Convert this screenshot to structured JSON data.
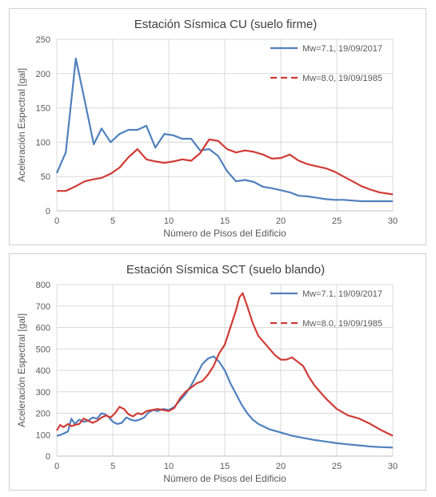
{
  "chart_data": [
    {
      "type": "line",
      "title": "Estación Sísmica CU (suelo firme)",
      "xlabel": "Número de Pisos del Edificio",
      "ylabel": "Aceleración Espectral [gal]",
      "xlim": [
        0,
        30
      ],
      "ylim": [
        0,
        250
      ],
      "xticks": [
        "0",
        "5",
        "10",
        "15",
        "20",
        "25",
        "30"
      ],
      "yticks": [
        "0",
        "50",
        "100",
        "150",
        "200",
        "250"
      ],
      "grid": true,
      "legend_position": "top-right",
      "series": [
        {
          "name": "Mw=7.1, 19/09/2017",
          "color": "#4f81bd",
          "dash": "solid",
          "x": [
            0,
            0.8,
            1.7,
            2.5,
            3.3,
            4,
            4.8,
            5.6,
            6.4,
            7.2,
            8,
            8.8,
            9.6,
            10.4,
            11.2,
            12,
            12.8,
            13.6,
            14.4,
            15.2,
            16,
            16.8,
            17.6,
            18.4,
            19.2,
            20,
            20.8,
            21.6,
            22.4,
            23.2,
            24,
            24.8,
            25.6,
            26.4,
            27.2,
            28,
            28.8,
            30
          ],
          "y": [
            55,
            85,
            222,
            160,
            97,
            120,
            100,
            112,
            118,
            118,
            124,
            92,
            112,
            110,
            105,
            105,
            88,
            90,
            80,
            58,
            43,
            45,
            42,
            35,
            33,
            30,
            27,
            22,
            21,
            19,
            17,
            16,
            16,
            15,
            14,
            14,
            14,
            14
          ]
        },
        {
          "name": "Mw=8.0, 19/09/1985",
          "color": "#d03b35",
          "dash": "dashed-legend",
          "x": [
            0,
            0.8,
            1.7,
            2.5,
            3.3,
            4,
            4.8,
            5.6,
            6.4,
            7.2,
            8,
            8.8,
            9.6,
            10.4,
            11.2,
            12,
            12.8,
            13.6,
            14.4,
            15.2,
            16,
            16.8,
            17.6,
            18.4,
            19.2,
            20,
            20.8,
            21.6,
            22.4,
            23.2,
            24,
            24.8,
            25.6,
            26.4,
            27.2,
            28,
            28.8,
            30
          ],
          "y": [
            29,
            29,
            36,
            43,
            46,
            48,
            54,
            63,
            78,
            90,
            75,
            72,
            70,
            72,
            75,
            73,
            84,
            104,
            102,
            90,
            85,
            88,
            86,
            82,
            76,
            77,
            82,
            73,
            68,
            65,
            62,
            57,
            50,
            43,
            36,
            31,
            27,
            24
          ]
        }
      ]
    },
    {
      "type": "line",
      "title": "Estación Sísmica SCT (suelo blando)",
      "xlabel": "Número de Pisos del Edificio",
      "ylabel": "Aceleración Espectral [gal]",
      "xlim": [
        0,
        30
      ],
      "ylim": [
        0,
        800
      ],
      "xticks": [
        "0",
        "5",
        "10",
        "15",
        "20",
        "25",
        "30"
      ],
      "yticks": [
        "0",
        "100",
        "200",
        "300",
        "400",
        "500",
        "600",
        "700",
        "800"
      ],
      "grid": true,
      "legend_position": "top-right",
      "series": [
        {
          "name": "Mw=7.1, 19/09/2017",
          "color": "#4f81bd",
          "dash": "solid",
          "x": [
            0,
            0.3,
            0.6,
            1,
            1.3,
            1.6,
            2,
            2.4,
            2.8,
            3.2,
            3.6,
            4,
            4.3,
            4.6,
            5,
            5.4,
            5.8,
            6.2,
            6.6,
            7,
            7.4,
            7.8,
            8.2,
            8.6,
            9,
            9.5,
            10,
            10.5,
            11,
            11.5,
            12,
            12.5,
            13,
            13.5,
            14,
            14.5,
            15,
            15.5,
            16,
            16.5,
            17,
            17.5,
            18,
            19,
            20,
            21,
            22,
            23,
            24,
            25,
            26,
            27,
            28,
            29,
            30
          ],
          "y": [
            95,
            98,
            105,
            115,
            175,
            150,
            170,
            160,
            165,
            180,
            175,
            200,
            195,
            185,
            160,
            150,
            155,
            180,
            170,
            165,
            170,
            180,
            205,
            215,
            210,
            220,
            215,
            230,
            260,
            290,
            330,
            380,
            430,
            455,
            465,
            440,
            400,
            340,
            290,
            240,
            200,
            170,
            150,
            125,
            110,
            95,
            85,
            75,
            68,
            60,
            55,
            50,
            45,
            42,
            40
          ]
        },
        {
          "name": "Mw=8.0, 19/09/1985",
          "color": "#d03b35",
          "dash": "dashed-legend",
          "x": [
            0,
            0.3,
            0.6,
            1,
            1.3,
            1.6,
            2,
            2.4,
            2.8,
            3.2,
            3.6,
            4,
            4.4,
            4.8,
            5.2,
            5.6,
            6,
            6.4,
            6.8,
            7.2,
            7.6,
            8,
            8.5,
            9,
            9.5,
            10,
            10.5,
            11,
            11.5,
            12,
            12.5,
            13,
            13.5,
            14,
            14.5,
            15,
            15.5,
            16,
            16.3,
            16.6,
            17,
            17.5,
            18,
            18.5,
            19,
            19.5,
            20,
            20.5,
            21,
            21.5,
            22,
            22.5,
            23,
            24,
            25,
            26,
            27,
            28,
            29,
            30
          ],
          "y": [
            120,
            145,
            135,
            150,
            140,
            145,
            150,
            175,
            165,
            155,
            165,
            180,
            190,
            180,
            200,
            230,
            220,
            195,
            185,
            200,
            195,
            210,
            215,
            220,
            215,
            210,
            225,
            270,
            300,
            320,
            340,
            350,
            380,
            420,
            480,
            520,
            600,
            680,
            740,
            760,
            700,
            620,
            560,
            530,
            500,
            470,
            450,
            450,
            460,
            440,
            420,
            370,
            330,
            270,
            220,
            190,
            175,
            150,
            120,
            95
          ]
        }
      ]
    }
  ]
}
